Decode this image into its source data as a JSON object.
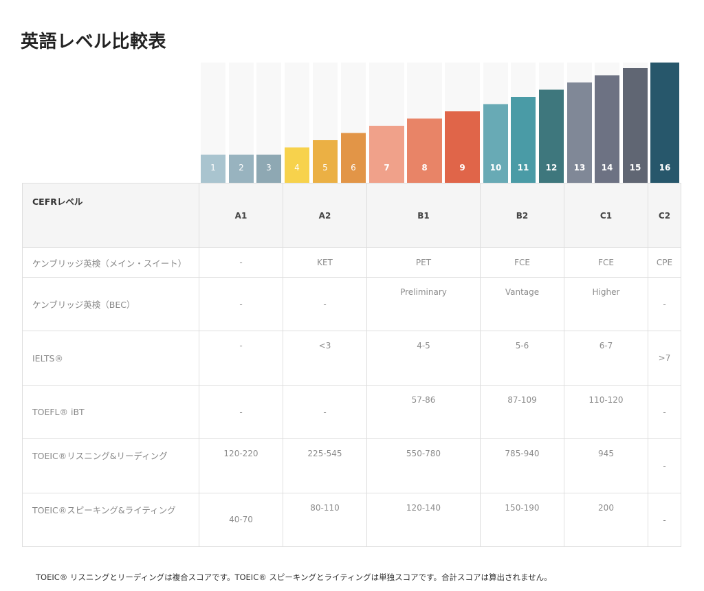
{
  "title": "英語レベル比較表",
  "colors": {
    "bar_bg": "#f8f8f8",
    "levels": [
      "#a9c4cf",
      "#98b3bf",
      "#8ea8b3",
      "#f7d24c",
      "#ebb044",
      "#e29547",
      "#f0a18a",
      "#e88467",
      "#e06549",
      "#68aab5",
      "#4a9ba6",
      "#3e777d",
      "#808897",
      "#6d7283",
      "#606673",
      "#27576b"
    ]
  },
  "chart_data": {
    "type": "bar",
    "categories": [
      "1",
      "2",
      "3",
      "4",
      "5",
      "6",
      "7",
      "8",
      "9",
      "10",
      "11",
      "12",
      "13",
      "14",
      "15",
      "16"
    ],
    "values": [
      1,
      1,
      1,
      2,
      3,
      4,
      5,
      6,
      7,
      8,
      9,
      10,
      11,
      12,
      13,
      14
    ],
    "ylim": [
      0,
      14
    ],
    "grid": false,
    "legend": "none"
  },
  "table": {
    "header": {
      "label": "CEFRレベル",
      "levels": [
        "A1",
        "A2",
        "B1",
        "B2",
        "C1",
        "C2"
      ]
    },
    "rows": [
      {
        "label": "ケンブリッジ英検（メイン・スイート）",
        "cells": [
          "-",
          "KET",
          "PET",
          "FCE",
          "FCE",
          "CPE"
        ]
      },
      {
        "label": "ケンブリッジ英検（BEC）",
        "cells": [
          "-",
          "-",
          "Preliminary",
          "Vantage",
          "Higher",
          "-"
        ]
      },
      {
        "label": "IELTS®",
        "cells": [
          "-",
          "<3",
          "4-5",
          "5-6",
          "6-7",
          ">7"
        ]
      },
      {
        "label": "TOEFL® iBT",
        "cells": [
          "-",
          "-",
          "57-86",
          "87-109",
          "110-120",
          "-"
        ]
      },
      {
        "label": "TOEIC®リスニング&リーディング",
        "cells": [
          "120-220",
          "225-545",
          "550-780",
          "785-940",
          "945",
          "-"
        ]
      },
      {
        "label": "TOEIC®スピーキング&ライティング",
        "cells": [
          "40-70",
          "80-110",
          "120-140",
          "150-190",
          "200",
          "-"
        ]
      }
    ]
  },
  "footnote": "TOEIC® リスニングとリーディングは複合スコアです。TOEIC® スピーキングとライティングは単独スコアです。合計スコアは算出されません。"
}
